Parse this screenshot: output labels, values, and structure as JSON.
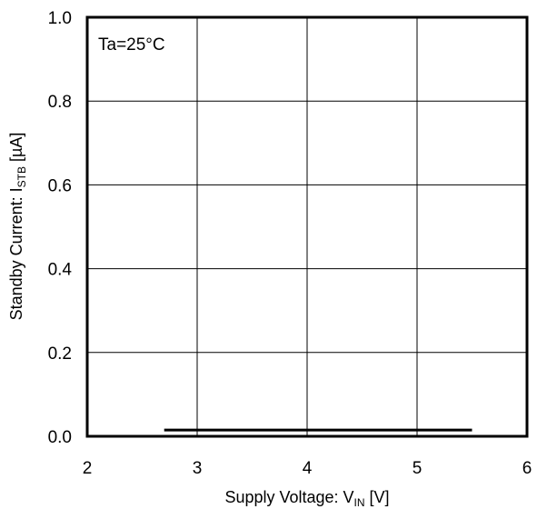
{
  "chart_data": {
    "type": "line",
    "xlabel": {
      "main": "Supply Voltage: V",
      "sub": "IN",
      "unit": " [V]"
    },
    "ylabel": {
      "main": "Standby Current: I",
      "sub": "STB",
      "unit": " [µA]"
    },
    "xlim": [
      2,
      6
    ],
    "ylim": [
      0.0,
      1.0
    ],
    "x_ticks": [
      "2",
      "3",
      "4",
      "5",
      "6"
    ],
    "y_ticks": [
      "0.0",
      "0.2",
      "0.4",
      "0.6",
      "0.8",
      "1.0"
    ],
    "grid": true,
    "annotation": "Ta=25°C",
    "series": [
      {
        "x": [
          2.7,
          5.5
        ],
        "y": [
          0.015,
          0.015
        ],
        "color": "#000000"
      }
    ]
  }
}
